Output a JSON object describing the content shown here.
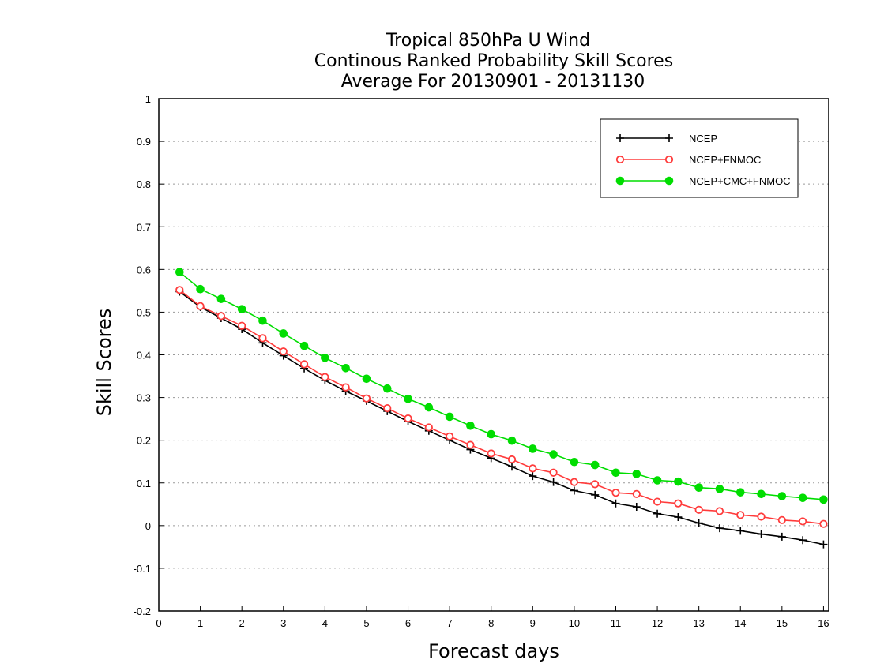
{
  "chart_data": {
    "type": "line",
    "title_lines": [
      "Tropical 850hPa U Wind",
      "Continous Ranked Probability Skill Scores",
      "Average For 20130901 - 20131130"
    ],
    "xlabel": "Forecast days",
    "ylabel": "Skill Scores",
    "xlim": [
      0,
      16.125
    ],
    "ylim": [
      -0.2,
      1
    ],
    "x_ticks": [
      0,
      1,
      2,
      3,
      4,
      5,
      6,
      7,
      8,
      9,
      10,
      11,
      12,
      13,
      14,
      15,
      16
    ],
    "y_ticks": [
      -0.2,
      -0.1,
      0,
      0.1,
      0.2,
      0.3,
      0.4,
      0.5,
      0.6,
      0.7,
      0.8,
      0.9,
      1
    ],
    "y_tick_labels": [
      "-0.2",
      "-0.1",
      "0",
      "0.1",
      "0.2",
      "0.3",
      "0.4",
      "0.5",
      "0.6",
      "0.7",
      "0.8",
      "0.9",
      "1"
    ],
    "grid": "horizontal dotted",
    "legend_position": "top-right",
    "x": [
      0.5,
      1,
      1.5,
      2,
      2.5,
      3,
      3.5,
      4,
      4.5,
      5,
      5.5,
      6,
      6.5,
      7,
      7.5,
      8,
      8.5,
      9,
      9.5,
      10,
      10.5,
      11,
      11.5,
      12,
      12.5,
      13,
      13.5,
      14,
      14.5,
      15,
      15.5,
      16
    ],
    "series": [
      {
        "name": "NCEP",
        "color": "#000000",
        "marker": "plus",
        "values": [
          0.548,
          0.512,
          0.486,
          0.46,
          0.428,
          0.398,
          0.368,
          0.34,
          0.315,
          0.292,
          0.268,
          0.244,
          0.222,
          0.2,
          0.178,
          0.158,
          0.138,
          0.116,
          0.102,
          0.082,
          0.072,
          0.052,
          0.044,
          0.028,
          0.02,
          0.006,
          -0.006,
          -0.012,
          -0.02,
          -0.026,
          -0.034,
          -0.044
        ]
      },
      {
        "name": "NCEP+FNMOC",
        "color": "#ff3b3b",
        "marker": "open-circle",
        "values": [
          0.552,
          0.514,
          0.491,
          0.468,
          0.439,
          0.408,
          0.378,
          0.348,
          0.324,
          0.298,
          0.275,
          0.251,
          0.23,
          0.209,
          0.189,
          0.169,
          0.155,
          0.134,
          0.124,
          0.102,
          0.097,
          0.077,
          0.074,
          0.056,
          0.052,
          0.037,
          0.034,
          0.025,
          0.021,
          0.013,
          0.01,
          0.004
        ]
      },
      {
        "name": "NCEP+CMC+FNMOC",
        "color": "#00dd00",
        "marker": "filled-circle",
        "values": [
          0.594,
          0.554,
          0.531,
          0.507,
          0.48,
          0.45,
          0.421,
          0.393,
          0.369,
          0.344,
          0.321,
          0.297,
          0.277,
          0.255,
          0.234,
          0.214,
          0.199,
          0.18,
          0.167,
          0.149,
          0.142,
          0.124,
          0.121,
          0.106,
          0.103,
          0.089,
          0.086,
          0.078,
          0.074,
          0.069,
          0.065,
          0.061
        ]
      }
    ]
  }
}
